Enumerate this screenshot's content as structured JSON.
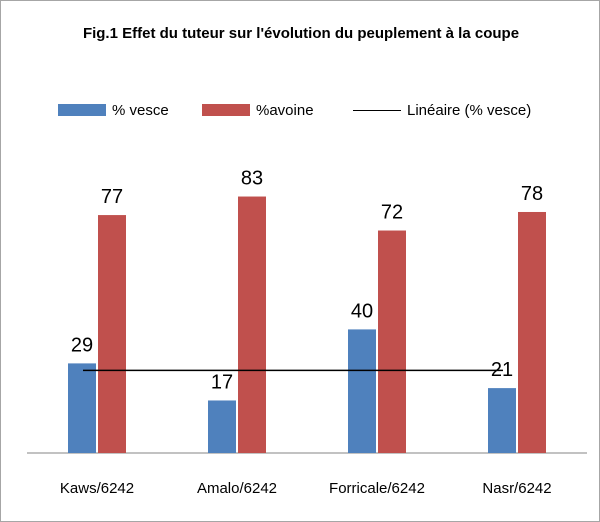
{
  "chart_data": {
    "type": "bar",
    "title": "Fig.1  Effet du tuteur sur l'évolution du peuplement à la coupe",
    "categories": [
      "Kaws/6242",
      "Amalo/6242",
      "Forricale/6242",
      "Nasr/6242"
    ],
    "series": [
      {
        "name": "% vesce",
        "values": [
          29,
          17,
          40,
          21
        ],
        "color": "#4f81bd"
      },
      {
        "name": "%avoine",
        "values": [
          77,
          83,
          72,
          78
        ],
        "color": "#c0504d"
      }
    ],
    "trendline": {
      "name": "Linéaire (% vesce)",
      "series": "% vesce",
      "type": "linear",
      "value": 26.75,
      "color": "#000000"
    },
    "ylim": [
      0,
      100
    ],
    "grid": false,
    "legend_position": "top"
  }
}
